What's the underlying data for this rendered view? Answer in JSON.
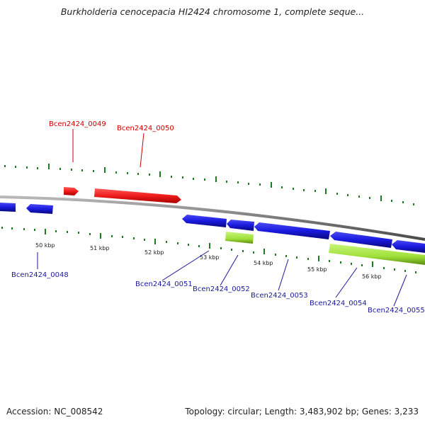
{
  "title": "Burkholderia cenocepacia HI2424 chromosome 1, complete seque...",
  "footer": {
    "accession": "Accession: NC_008542",
    "summary": "Topology: circular; Length: 3,483,902 bp; Genes: 3,233"
  },
  "colors": {
    "forward_gene": "#ee1c1c",
    "reverse_gene": "#1a1adf",
    "rna_feature": "#9fe03a",
    "backbone": "#8c8c8c",
    "tick": "#1e7a1e",
    "forward_label": "#cc0000",
    "reverse_label": "#1a1a9a"
  },
  "kbp_labels": [
    "50 kbp",
    "51 kbp",
    "52 kbp",
    "53 kbp",
    "54 kbp",
    "55 kbp",
    "56 kbp"
  ],
  "gene_labels": {
    "g0048": "Bcen2424_0048",
    "g0049": "Bcen2424_0049",
    "g0050": "Bcen2424_0050",
    "g0051": "Bcen2424_0051",
    "g0052": "Bcen2424_0052",
    "g0053": "Bcen2424_0053",
    "g0054": "Bcen2424_0054",
    "g0055": "Bcen2424_0055"
  }
}
